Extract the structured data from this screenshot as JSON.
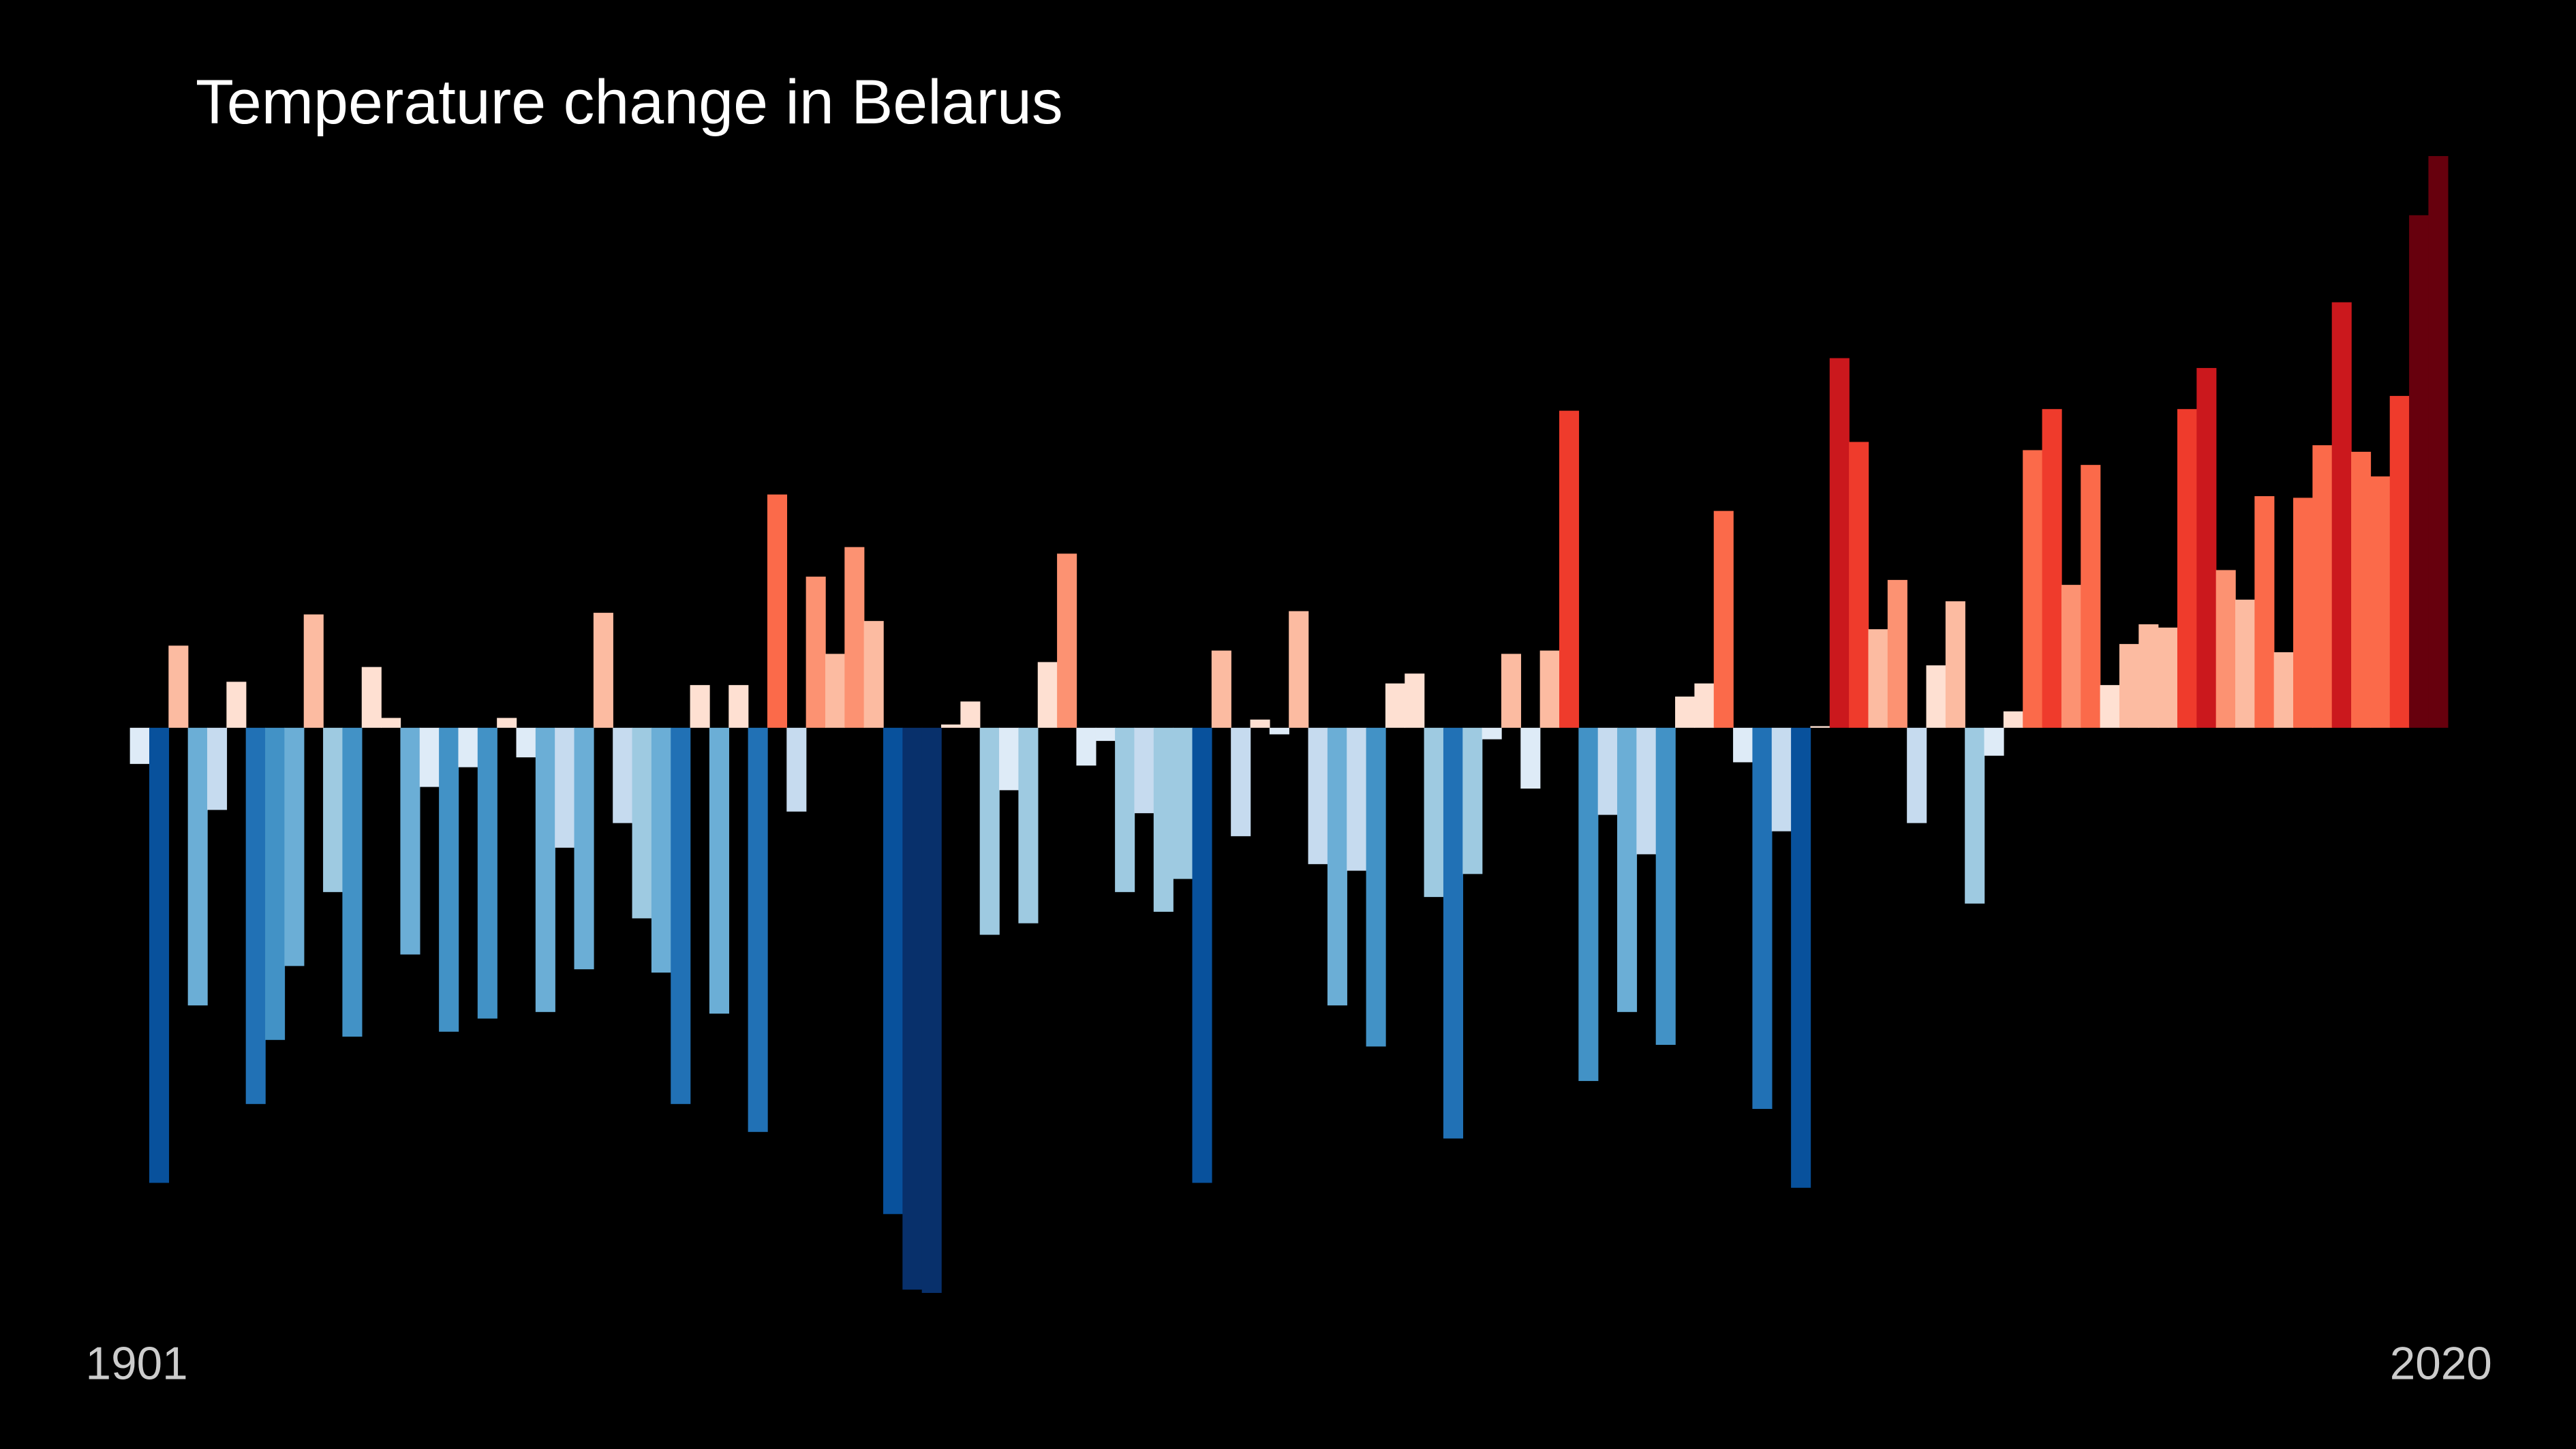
{
  "chart_data": {
    "type": "bar",
    "title": "Temperature change in Belarus",
    "categories": [
      "1901",
      null,
      null,
      null,
      null,
      null,
      null,
      null,
      null,
      null,
      null,
      null,
      null,
      null,
      null,
      null,
      null,
      null,
      null,
      null,
      null,
      null,
      null,
      null,
      null,
      null,
      null,
      null,
      null,
      null,
      null,
      null,
      null,
      null,
      null,
      null,
      null,
      null,
      null,
      null,
      null,
      null,
      null,
      null,
      null,
      null,
      null,
      null,
      null,
      null,
      null,
      null,
      null,
      null,
      null,
      null,
      null,
      null,
      null,
      null,
      null,
      null,
      null,
      null,
      null,
      null,
      null,
      null,
      null,
      null,
      null,
      null,
      null,
      null,
      null,
      null,
      null,
      null,
      null,
      null,
      null,
      null,
      null,
      null,
      null,
      null,
      null,
      null,
      null,
      null,
      null,
      null,
      null,
      null,
      null,
      null,
      null,
      null,
      null,
      null,
      null,
      null,
      null,
      null,
      null,
      null,
      null,
      null,
      null,
      null,
      null,
      null,
      null,
      null,
      null,
      null,
      null,
      null,
      null,
      "2020"
    ],
    "values": [
      -0.22,
      -2.77,
      0.5,
      -1.69,
      -0.5,
      0.28,
      -2.29,
      -1.9,
      -1.45,
      0.69,
      -1.0,
      -1.88,
      0.37,
      0.06,
      -1.38,
      -0.36,
      -1.85,
      -0.24,
      -1.77,
      0.06,
      -0.18,
      -1.73,
      -0.73,
      -1.47,
      0.7,
      -0.58,
      -1.16,
      -1.49,
      -2.29,
      0.26,
      -1.74,
      0.26,
      -2.46,
      1.42,
      -0.51,
      0.92,
      0.45,
      1.1,
      0.65,
      -2.96,
      -3.42,
      -3.44,
      0.02,
      0.16,
      -1.26,
      -0.38,
      -1.19,
      0.4,
      1.06,
      -0.23,
      -0.08,
      -1.0,
      -0.52,
      -1.12,
      -0.92,
      -2.77,
      0.47,
      -0.66,
      0.05,
      -0.04,
      0.71,
      -0.83,
      -1.69,
      -0.87,
      -1.94,
      0.27,
      0.33,
      -1.03,
      -2.5,
      -0.89,
      -0.07,
      0.45,
      -0.37,
      0.47,
      1.93,
      -2.15,
      -0.53,
      -1.73,
      -0.77,
      -1.93,
      0.19,
      0.27,
      1.32,
      -0.21,
      -2.32,
      -0.63,
      -2.8,
      0.01,
      2.25,
      1.74,
      0.6,
      0.9,
      -0.58,
      0.38,
      0.77,
      -1.07,
      -0.17,
      0.1,
      1.69,
      1.94,
      0.87,
      1.6,
      0.26,
      0.51,
      0.63,
      0.61,
      1.94,
      2.19,
      0.96,
      0.78,
      1.41,
      0.46,
      1.4,
      1.72,
      2.59,
      1.68,
      1.53,
      2.02,
      3.12,
      3.48
    ],
    "colormap": [
      "#08306b",
      "#08519c",
      "#2171b5",
      "#4292c6",
      "#6baed6",
      "#9ecae1",
      "#c6dbef",
      "#deebf7",
      "#fee0d2",
      "#fcbba1",
      "#fc9272",
      "#fb6a4a",
      "#ef3b2c",
      "#cb181d",
      "#a50f15",
      "#67000d"
    ],
    "background": "#000000"
  }
}
